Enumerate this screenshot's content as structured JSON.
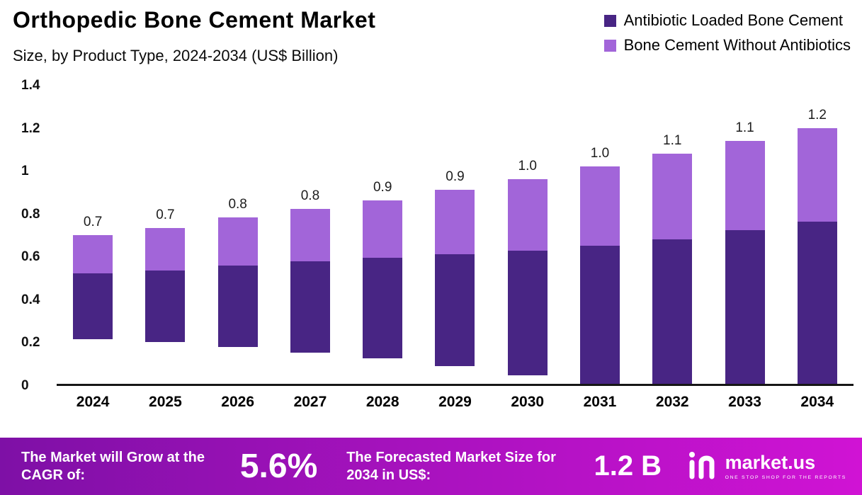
{
  "header": {
    "title": "Orthopedic Bone Cement Market",
    "subtitle": "Size, by Product Type, 2024-2034 (US$ Billion)"
  },
  "legend": [
    {
      "label": "Antibiotic Loaded Bone Cement",
      "color": "#482584"
    },
    {
      "label": "Bone Cement Without Antibiotics",
      "color": "#A265D9"
    }
  ],
  "chart_data": {
    "type": "bar",
    "stacked": true,
    "title": "Orthopedic Bone Cement Market",
    "subtitle": "Size, by Product Type, 2024-2034 (US$ Billion)",
    "categories": [
      "2024",
      "2025",
      "2026",
      "2027",
      "2028",
      "2029",
      "2030",
      "2031",
      "2032",
      "2033",
      "2034"
    ],
    "series": [
      {
        "name": "Antibiotic Loaded Bone Cement",
        "color": "#482584",
        "values": [
          0.44,
          0.46,
          0.49,
          0.52,
          0.55,
          0.58,
          0.61,
          0.65,
          0.68,
          0.72,
          0.76
        ]
      },
      {
        "name": "Bone Cement Without Antibiotics",
        "color": "#A265D9",
        "values": [
          0.26,
          0.27,
          0.29,
          0.3,
          0.31,
          0.33,
          0.35,
          0.37,
          0.4,
          0.42,
          0.44
        ]
      }
    ],
    "total_labels": [
      "0.7",
      "0.7",
      "0.8",
      "0.8",
      "0.9",
      "0.9",
      "1.0",
      "1.0",
      "1.1",
      "1.1",
      "1.2"
    ],
    "ylim": [
      0,
      1.4
    ],
    "yticks": [
      {
        "label": "0",
        "v": 0
      },
      {
        "label": "0.2",
        "v": 0.2
      },
      {
        "label": "0.4",
        "v": 0.4
      },
      {
        "label": "0.6",
        "v": 0.6
      },
      {
        "label": "0.8",
        "v": 0.8
      },
      {
        "label": "1",
        "v": 1
      },
      {
        "label": "1.2",
        "v": 1.2
      },
      {
        "label": "1.4",
        "v": 1.4
      }
    ],
    "legend_position": "top-right",
    "grid": false
  },
  "footer": {
    "cagr_label": "The Market will Grow at the CAGR of:",
    "cagr_value": "5.6%",
    "forecast_label": "The Forecasted Market Size for 2034 in US$:",
    "forecast_value": "1.2 B",
    "brand_name": "market.us",
    "brand_tagline": "ONE STOP SHOP FOR THE REPORTS"
  }
}
